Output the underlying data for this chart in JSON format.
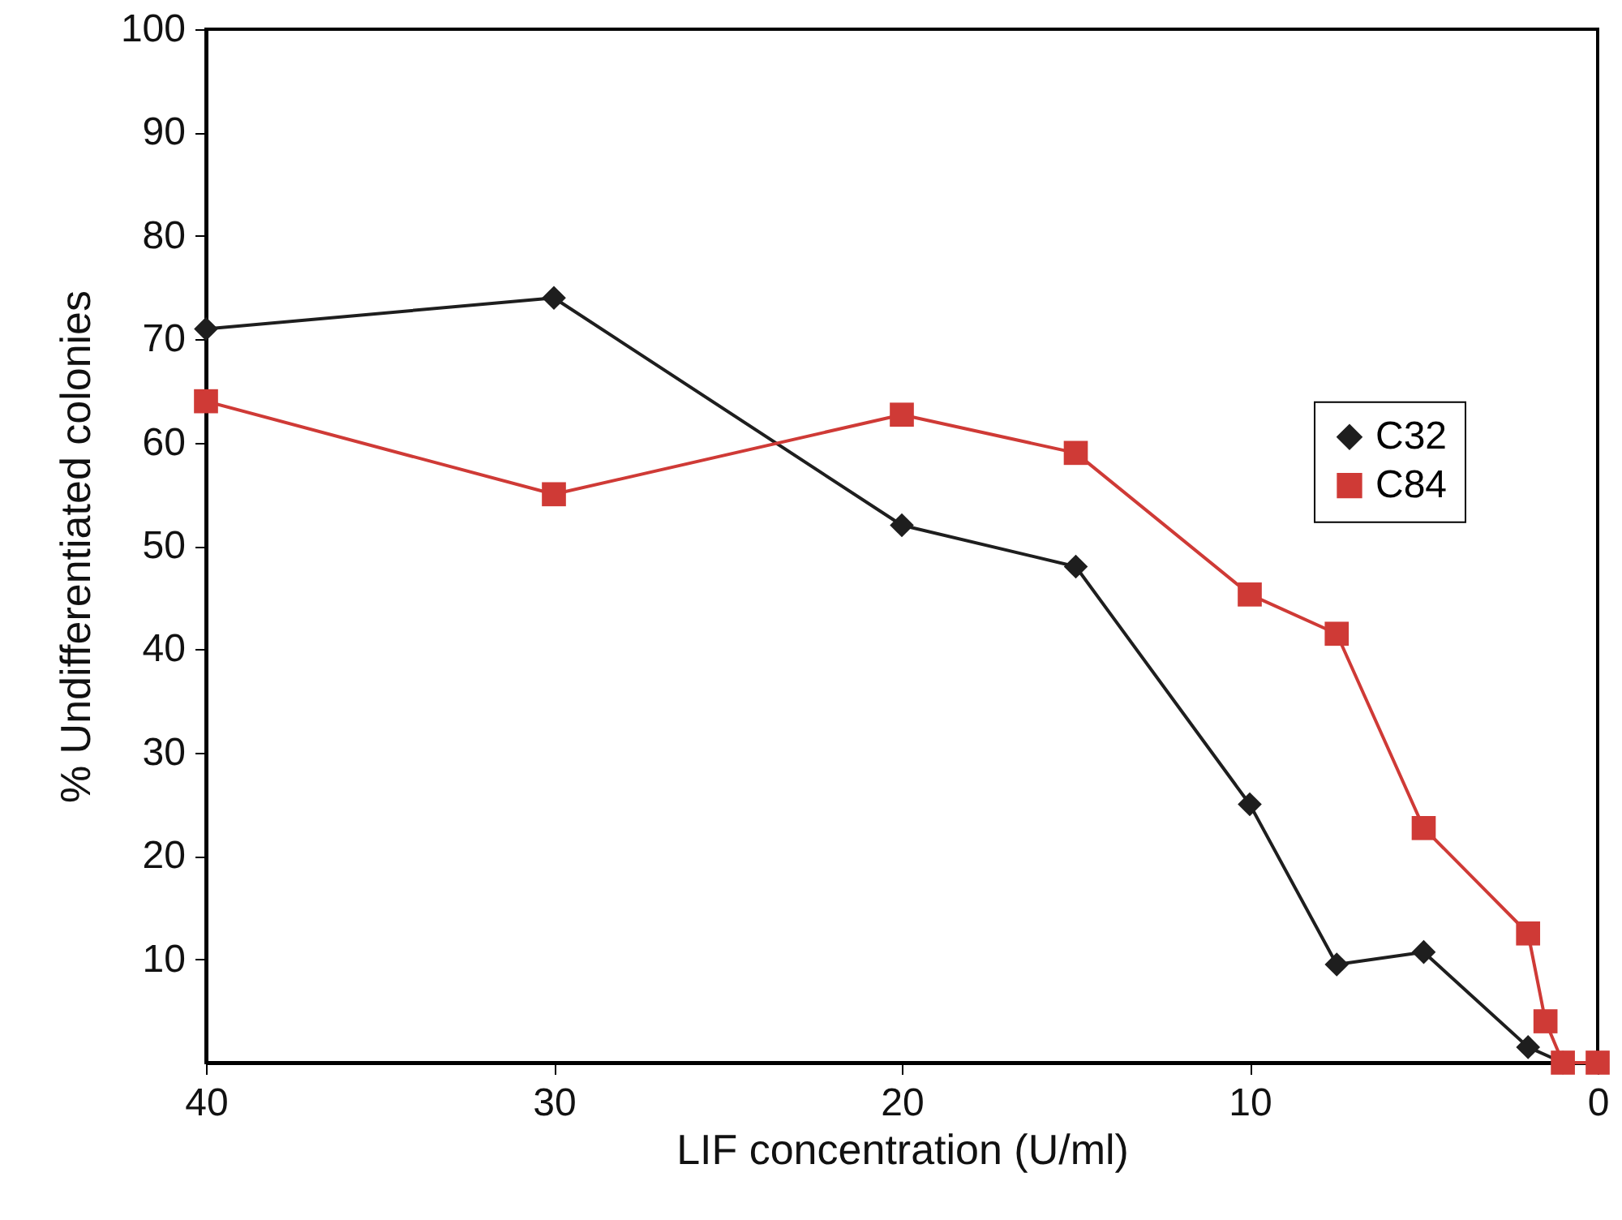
{
  "chart_data": {
    "type": "line",
    "xlabel": "LIF concentration (U/ml)",
    "ylabel": "% Undifferentiated colonies",
    "xlim": [
      40,
      0
    ],
    "xticks": [
      40,
      30,
      20,
      10,
      0
    ],
    "ylim": [
      0,
      100
    ],
    "yticks": [
      10,
      20,
      30,
      40,
      50,
      60,
      70,
      80,
      90,
      100
    ],
    "grid": false,
    "legend": "right",
    "line_style": "solid",
    "series": [
      {
        "name": "C32",
        "color": "#1e1e1e",
        "marker": "diamond",
        "x": [
          40,
          30,
          20,
          15,
          10,
          7.5,
          5,
          2,
          1
        ],
        "values": [
          71,
          74,
          52,
          48,
          25,
          9.5,
          10.7,
          1.5,
          0
        ]
      },
      {
        "name": "C84",
        "color": "#cf3a36",
        "marker": "square",
        "x": [
          40,
          30,
          20,
          15,
          10,
          7.5,
          5,
          2,
          1.5,
          1,
          0
        ],
        "values": [
          64,
          55,
          62.7,
          59,
          45.3,
          41.5,
          22.7,
          12.5,
          4,
          0,
          0
        ]
      }
    ]
  }
}
